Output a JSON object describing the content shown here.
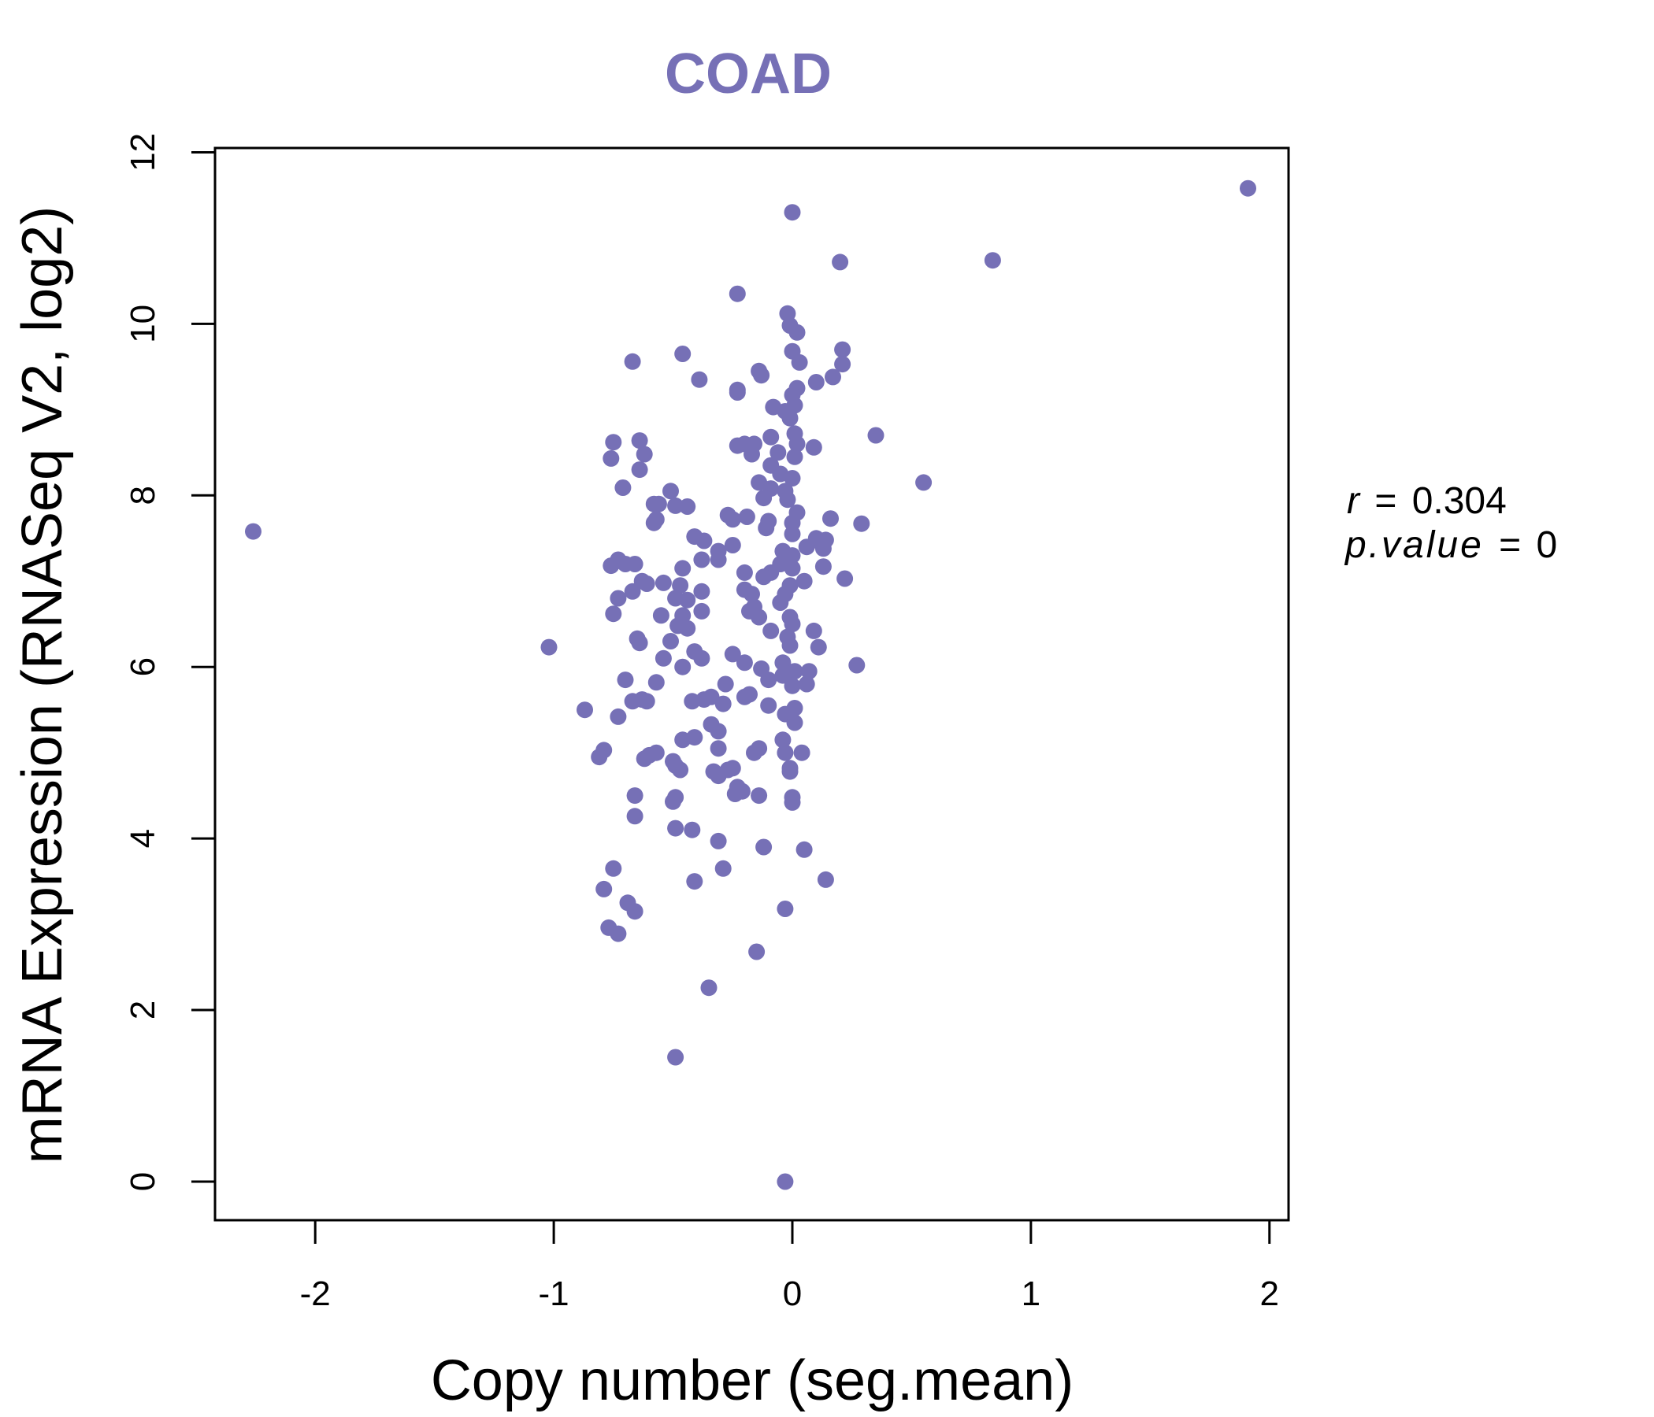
{
  "chart_data": {
    "type": "scatter",
    "title": "COAD",
    "xlabel": "Copy number (seg.mean)",
    "ylabel": "mRNA Expression (RNASeq V2, log2)",
    "xlim": [
      -2.42,
      2.08
    ],
    "ylim": [
      -0.45,
      12.05
    ],
    "x_ticks": [
      -2,
      -1,
      0,
      1,
      2
    ],
    "x_tick_labels": [
      "-2",
      "-1",
      "0",
      "1",
      "2"
    ],
    "y_ticks": [
      0,
      2,
      4,
      6,
      8,
      10,
      12
    ],
    "y_tick_labels": [
      "0",
      "2",
      "4",
      "6",
      "8",
      "10",
      "12"
    ],
    "grid": false,
    "color": "#7670b6",
    "annotations": {
      "r_symbol": "r",
      "r_value": "0.304",
      "p_symbol": "p.value",
      "p_value": "0",
      "equals": "="
    },
    "points": [
      [
        -2.26,
        7.58
      ],
      [
        1.91,
        11.58
      ],
      [
        0.0,
        11.3
      ],
      [
        0.2,
        10.72
      ],
      [
        0.84,
        10.74
      ],
      [
        -0.23,
        10.35
      ],
      [
        -0.02,
        10.12
      ],
      [
        -0.01,
        9.98
      ],
      [
        0.02,
        9.9
      ],
      [
        0.21,
        9.7
      ],
      [
        0.0,
        9.68
      ],
      [
        -0.46,
        9.65
      ],
      [
        -0.67,
        9.56
      ],
      [
        0.03,
        9.55
      ],
      [
        0.21,
        9.53
      ],
      [
        -0.14,
        9.45
      ],
      [
        -0.13,
        9.4
      ],
      [
        0.17,
        9.38
      ],
      [
        -0.39,
        9.35
      ],
      [
        0.1,
        9.32
      ],
      [
        0.02,
        9.25
      ],
      [
        -0.23,
        9.23
      ],
      [
        -0.23,
        9.2
      ],
      [
        0.0,
        9.17
      ],
      [
        0.01,
        9.05
      ],
      [
        -0.08,
        9.03
      ],
      [
        -0.03,
        8.98
      ],
      [
        -0.01,
        8.9
      ],
      [
        0.35,
        8.7
      ],
      [
        -0.09,
        8.68
      ],
      [
        0.01,
        8.72
      ],
      [
        0.02,
        8.6
      ],
      [
        -0.75,
        8.62
      ],
      [
        -0.64,
        8.64
      ],
      [
        -0.2,
        8.6
      ],
      [
        -0.16,
        8.6
      ],
      [
        -0.23,
        8.58
      ],
      [
        0.09,
        8.56
      ],
      [
        -0.06,
        8.5
      ],
      [
        -0.17,
        8.48
      ],
      [
        -0.62,
        8.48
      ],
      [
        -0.76,
        8.43
      ],
      [
        0.01,
        8.45
      ],
      [
        -0.09,
        8.35
      ],
      [
        -0.64,
        8.3
      ],
      [
        -0.05,
        8.25
      ],
      [
        0.0,
        8.2
      ],
      [
        -0.14,
        8.15
      ],
      [
        0.55,
        8.15
      ],
      [
        -0.71,
        8.09
      ],
      [
        -0.09,
        8.08
      ],
      [
        -0.51,
        8.05
      ],
      [
        -0.03,
        8.05
      ],
      [
        -0.12,
        7.97
      ],
      [
        -0.02,
        7.95
      ],
      [
        -0.56,
        7.9
      ],
      [
        -0.58,
        7.9
      ],
      [
        -0.49,
        7.88
      ],
      [
        -0.44,
        7.87
      ],
      [
        0.02,
        7.8
      ],
      [
        -0.27,
        7.77
      ],
      [
        -0.19,
        7.75
      ],
      [
        0.16,
        7.73
      ],
      [
        -0.25,
        7.72
      ],
      [
        -0.57,
        7.72
      ],
      [
        -0.58,
        7.68
      ],
      [
        -0.1,
        7.7
      ],
      [
        0.0,
        7.68
      ],
      [
        0.29,
        7.67
      ],
      [
        -0.11,
        7.62
      ],
      [
        0.0,
        7.55
      ],
      [
        -0.41,
        7.52
      ],
      [
        0.1,
        7.5
      ],
      [
        0.14,
        7.48
      ],
      [
        -0.37,
        7.47
      ],
      [
        0.12,
        7.45
      ],
      [
        -0.25,
        7.42
      ],
      [
        0.06,
        7.4
      ],
      [
        0.13,
        7.38
      ],
      [
        -0.31,
        7.35
      ],
      [
        -0.04,
        7.35
      ],
      [
        0.0,
        7.3
      ],
      [
        -0.76,
        7.18
      ],
      [
        -0.7,
        7.2
      ],
      [
        -0.66,
        7.2
      ],
      [
        -0.73,
        7.25
      ],
      [
        -0.38,
        7.25
      ],
      [
        -0.31,
        7.25
      ],
      [
        0.13,
        7.17
      ],
      [
        -0.05,
        7.2
      ],
      [
        0.0,
        7.15
      ],
      [
        -0.46,
        7.15
      ],
      [
        -0.09,
        7.1
      ],
      [
        -0.2,
        7.1
      ],
      [
        -0.12,
        7.05
      ],
      [
        0.22,
        7.03
      ],
      [
        0.05,
        7.0
      ],
      [
        -0.63,
        7.0
      ],
      [
        -0.61,
        6.97
      ],
      [
        -0.54,
        6.98
      ],
      [
        -0.47,
        6.95
      ],
      [
        -0.01,
        6.95
      ],
      [
        -0.38,
        6.88
      ],
      [
        -0.67,
        6.88
      ],
      [
        -0.2,
        6.9
      ],
      [
        -0.17,
        6.85
      ],
      [
        -0.03,
        6.85
      ],
      [
        -0.49,
        6.8
      ],
      [
        -0.73,
        6.8
      ],
      [
        -0.44,
        6.78
      ],
      [
        -0.05,
        6.75
      ],
      [
        -0.16,
        6.7
      ],
      [
        -0.18,
        6.65
      ],
      [
        -0.38,
        6.65
      ],
      [
        -0.75,
        6.62
      ],
      [
        -0.55,
        6.6
      ],
      [
        -0.46,
        6.6
      ],
      [
        -0.14,
        6.58
      ],
      [
        -0.01,
        6.58
      ],
      [
        0.0,
        6.5
      ],
      [
        -0.48,
        6.48
      ],
      [
        -0.44,
        6.45
      ],
      [
        -0.09,
        6.42
      ],
      [
        0.09,
        6.42
      ],
      [
        -0.02,
        6.35
      ],
      [
        -0.65,
        6.33
      ],
      [
        -0.64,
        6.28
      ],
      [
        -0.51,
        6.3
      ],
      [
        -0.01,
        6.25
      ],
      [
        0.11,
        6.23
      ],
      [
        -1.02,
        6.23
      ],
      [
        -0.41,
        6.18
      ],
      [
        -0.25,
        6.15
      ],
      [
        -0.38,
        6.1
      ],
      [
        -0.54,
        6.1
      ],
      [
        -0.2,
        6.05
      ],
      [
        -0.04,
        6.05
      ],
      [
        0.27,
        6.02
      ],
      [
        -0.46,
        6.0
      ],
      [
        -0.13,
        5.98
      ],
      [
        0.07,
        5.95
      ],
      [
        0.01,
        5.95
      ],
      [
        -0.04,
        5.9
      ],
      [
        -0.28,
        5.8
      ],
      [
        0.06,
        5.8
      ],
      [
        -0.7,
        5.85
      ],
      [
        -0.1,
        5.85
      ],
      [
        -0.57,
        5.82
      ],
      [
        0.0,
        5.78
      ],
      [
        -0.34,
        5.65
      ],
      [
        -0.18,
        5.68
      ],
      [
        -0.2,
        5.65
      ],
      [
        -0.37,
        5.62
      ],
      [
        -0.42,
        5.6
      ],
      [
        -0.61,
        5.6
      ],
      [
        -0.63,
        5.62
      ],
      [
        -0.67,
        5.6
      ],
      [
        -0.29,
        5.57
      ],
      [
        -0.1,
        5.55
      ],
      [
        0.01,
        5.52
      ],
      [
        -0.87,
        5.5
      ],
      [
        -0.03,
        5.45
      ],
      [
        -0.73,
        5.42
      ],
      [
        0.01,
        5.35
      ],
      [
        -0.34,
        5.33
      ],
      [
        -0.31,
        5.25
      ],
      [
        -0.46,
        5.15
      ],
      [
        -0.41,
        5.18
      ],
      [
        -0.04,
        5.15
      ],
      [
        -0.14,
        5.05
      ],
      [
        -0.16,
        5.0
      ],
      [
        -0.31,
        5.05
      ],
      [
        -0.79,
        5.03
      ],
      [
        -0.81,
        4.95
      ],
      [
        0.04,
        5.0
      ],
      [
        -0.03,
        5.0
      ],
      [
        -0.57,
        5.0
      ],
      [
        -0.6,
        4.97
      ],
      [
        -0.62,
        4.93
      ],
      [
        -0.5,
        4.9
      ],
      [
        -0.49,
        4.85
      ],
      [
        -0.47,
        4.8
      ],
      [
        -0.01,
        4.82
      ],
      [
        -0.01,
        4.78
      ],
      [
        -0.25,
        4.82
      ],
      [
        -0.33,
        4.78
      ],
      [
        -0.31,
        4.73
      ],
      [
        -0.27,
        4.8
      ],
      [
        -0.23,
        4.6
      ],
      [
        -0.21,
        4.55
      ],
      [
        -0.24,
        4.52
      ],
      [
        -0.14,
        4.5
      ],
      [
        -0.66,
        4.5
      ],
      [
        -0.49,
        4.48
      ],
      [
        -0.5,
        4.43
      ],
      [
        0.0,
        4.48
      ],
      [
        0.0,
        4.42
      ],
      [
        -0.66,
        4.26
      ],
      [
        -0.49,
        4.12
      ],
      [
        -0.42,
        4.1
      ],
      [
        -0.31,
        3.97
      ],
      [
        -0.12,
        3.9
      ],
      [
        0.05,
        3.87
      ],
      [
        -0.75,
        3.65
      ],
      [
        -0.29,
        3.65
      ],
      [
        0.14,
        3.52
      ],
      [
        -0.41,
        3.5
      ],
      [
        -0.79,
        3.41
      ],
      [
        -0.69,
        3.25
      ],
      [
        -0.66,
        3.15
      ],
      [
        -0.03,
        3.18
      ],
      [
        -0.77,
        2.96
      ],
      [
        -0.73,
        2.89
      ],
      [
        -0.15,
        2.68
      ],
      [
        -0.35,
        2.26
      ],
      [
        -0.49,
        1.45
      ],
      [
        -0.03,
        0.0
      ]
    ]
  }
}
